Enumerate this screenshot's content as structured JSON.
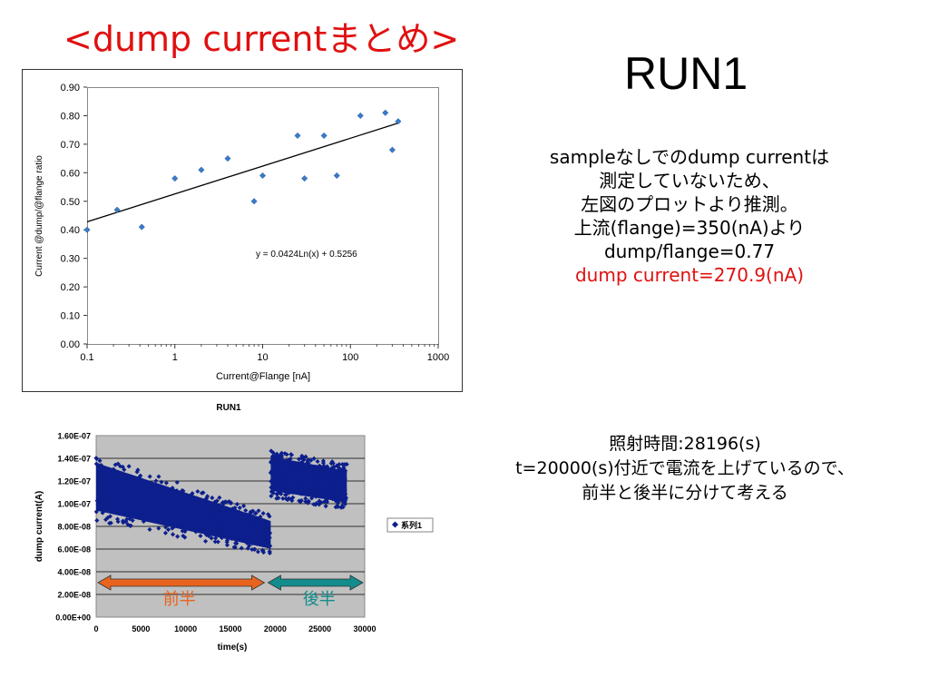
{
  "slide": {
    "title": "<dump currentまとめ>",
    "run_heading": "RUN1"
  },
  "notes_top": {
    "lines": [
      "sampleなしでのdump currentは",
      "測定していないため、",
      "左図のプロットより推測。",
      "上流(flange)=350(nA)より",
      "dump/flange=0.77"
    ],
    "result": "dump current=270.9(nA)",
    "result_color": "#e01010"
  },
  "notes_bottom": {
    "lines": [
      "照射時間:28196(s)",
      "t=20000(s)付近で電流を上げているので、",
      "前半と後半に分けて考える"
    ]
  },
  "chart_data": [
    {
      "type": "scatter",
      "title": "",
      "xlabel": "Current@Flange [nA]",
      "ylabel": "Current @dump/@flange ratio",
      "xscale": "log",
      "xlim": [
        0.1,
        1000
      ],
      "ylim": [
        0,
        0.9
      ],
      "x_ticks": [
        "0.1",
        "1",
        "10",
        "100",
        "1000"
      ],
      "y_ticks": [
        "0.00",
        "0.10",
        "0.20",
        "0.30",
        "0.40",
        "0.50",
        "0.60",
        "0.70",
        "0.80",
        "0.90"
      ],
      "points": [
        {
          "x": 0.1,
          "y": 0.4
        },
        {
          "x": 0.22,
          "y": 0.47
        },
        {
          "x": 0.42,
          "y": 0.41
        },
        {
          "x": 1.0,
          "y": 0.58
        },
        {
          "x": 2.0,
          "y": 0.61
        },
        {
          "x": 4.0,
          "y": 0.65
        },
        {
          "x": 8.0,
          "y": 0.5
        },
        {
          "x": 10.0,
          "y": 0.59
        },
        {
          "x": 25.0,
          "y": 0.73
        },
        {
          "x": 30.0,
          "y": 0.58
        },
        {
          "x": 50.0,
          "y": 0.73
        },
        {
          "x": 70.0,
          "y": 0.59
        },
        {
          "x": 130.0,
          "y": 0.8
        },
        {
          "x": 250.0,
          "y": 0.81
        },
        {
          "x": 300.0,
          "y": 0.68
        },
        {
          "x": 350.0,
          "y": 0.78
        }
      ],
      "trendline": {
        "equation": "y = 0.0424Ln(x) + 0.5256",
        "a": 0.0424,
        "b": 0.5256,
        "x_from": 0.1,
        "x_to": 350
      },
      "marker_color": "#3a7ac8",
      "grid": false,
      "legend": "none"
    },
    {
      "type": "scatter",
      "title": "RUN1",
      "xlabel": "time(s)",
      "ylabel": "dump current(A)",
      "xlim": [
        0,
        30000
      ],
      "ylim": [
        0,
        1.6e-07
      ],
      "x_ticks": [
        "0",
        "5000",
        "10000",
        "15000",
        "20000",
        "25000",
        "30000"
      ],
      "y_ticks": [
        "0.00E+00",
        "2.00E-08",
        "4.00E-08",
        "6.00E-08",
        "8.00E-08",
        "1.00E-07",
        "1.20E-07",
        "1.40E-07",
        "1.60E-07"
      ],
      "series": [
        {
          "name": "系列1",
          "color": "#0c1f8c",
          "segments": [
            {
              "x_from": 0,
              "x_to": 19500,
              "upper_from": 1.45e-07,
              "upper_to": 9e-08,
              "lower_from": 8.5e-08,
              "lower_to": 5.5e-08
            },
            {
              "x_from": 19500,
              "x_to": 28000,
              "upper_from": 1.48e-07,
              "upper_to": 1.35e-07,
              "lower_from": 1.05e-07,
              "lower_to": 9.5e-08
            }
          ]
        }
      ],
      "annotations": [
        {
          "text": "前半",
          "color": "#e8641e",
          "x_from": 0,
          "x_to": 19000
        },
        {
          "text": "後半",
          "color": "#128c8c",
          "x_from": 19000,
          "x_to": 30000
        }
      ],
      "plot_background": "#c0c0c0",
      "grid": true,
      "legend": "right"
    }
  ]
}
